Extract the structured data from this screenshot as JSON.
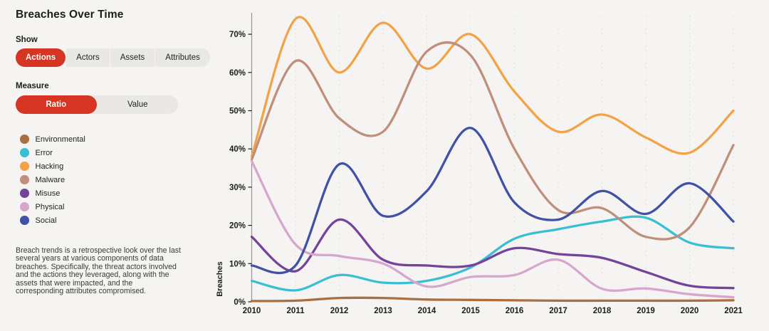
{
  "page": {
    "background": "#f5f4f2",
    "accent_color": "#d53522"
  },
  "sidebar": {
    "title": "Breaches Over Time",
    "show": {
      "label": "Show",
      "options": [
        {
          "label": "Actions",
          "selected": true
        },
        {
          "label": "Actors",
          "selected": false
        },
        {
          "label": "Assets",
          "selected": false
        },
        {
          "label": "Attributes",
          "selected": false
        }
      ]
    },
    "measure": {
      "label": "Measure",
      "options": [
        {
          "label": "Ratio",
          "selected": true
        },
        {
          "label": "Value",
          "selected": false
        }
      ]
    },
    "legend": [
      {
        "label": "Environmental",
        "color": "#ab6e3e"
      },
      {
        "label": "Error",
        "color": "#3abfd2"
      },
      {
        "label": "Hacking",
        "color": "#f2a348"
      },
      {
        "label": "Malware",
        "color": "#c08f7b"
      },
      {
        "label": "Misuse",
        "color": "#75439a"
      },
      {
        "label": "Physical",
        "color": "#d6a6cd"
      },
      {
        "label": "Social",
        "color": "#4152a6"
      }
    ],
    "description": "Breach trends is a retrospective look over the last several years at various components of data breaches. Specifically, the threat actors involved and the actions they leveraged, along with the assets that were impacted, and the corresponding attributes compromised."
  },
  "chart_data": {
    "type": "line",
    "title": "Breaches Over Time",
    "xlabel": "",
    "ylabel": "Breaches",
    "x": [
      2010,
      2011,
      2012,
      2013,
      2014,
      2015,
      2016,
      2017,
      2018,
      2019,
      2020,
      2021
    ],
    "y_unit": "%",
    "y_ticks": [
      "0%",
      "10%",
      "20%",
      "30%",
      "40%",
      "50%",
      "60%",
      "70%"
    ],
    "ylim": [
      0,
      75
    ],
    "grid": "vertical-dashed",
    "legend_position": "left",
    "series": [
      {
        "name": "Environmental",
        "color": "#ab6e3e",
        "values": [
          0.2,
          0.3,
          1.0,
          1.0,
          0.6,
          0.5,
          0.4,
          0.3,
          0.3,
          0.3,
          0.3,
          0.4
        ]
      },
      {
        "name": "Error",
        "color": "#3abfd2",
        "values": [
          5.5,
          3,
          7,
          5,
          5.5,
          9,
          16.5,
          19,
          21,
          22,
          15.5,
          14
        ]
      },
      {
        "name": "Hacking",
        "color": "#f2a348",
        "values": [
          38,
          74,
          60,
          73,
          61,
          70,
          55,
          44.5,
          49,
          43,
          39,
          50
        ]
      },
      {
        "name": "Malware",
        "color": "#c08f7b",
        "values": [
          37.2,
          63,
          48,
          44.5,
          65.5,
          64.5,
          40,
          24,
          24.5,
          17,
          19.5,
          41
        ]
      },
      {
        "name": "Misuse",
        "color": "#75439a",
        "values": [
          17,
          8,
          21.5,
          11,
          9.5,
          9.5,
          14,
          12.5,
          11.5,
          7.8,
          4.2,
          3.6
        ]
      },
      {
        "name": "Physical",
        "color": "#d6a6cd",
        "values": [
          36.8,
          15,
          12,
          10,
          4,
          6.5,
          7,
          11,
          3.4,
          3.5,
          2,
          1.2
        ]
      },
      {
        "name": "Social",
        "color": "#4152a6",
        "values": [
          9.5,
          9.5,
          36,
          22.5,
          29,
          45.5,
          26,
          21.5,
          29,
          23,
          31,
          21
        ]
      }
    ]
  }
}
